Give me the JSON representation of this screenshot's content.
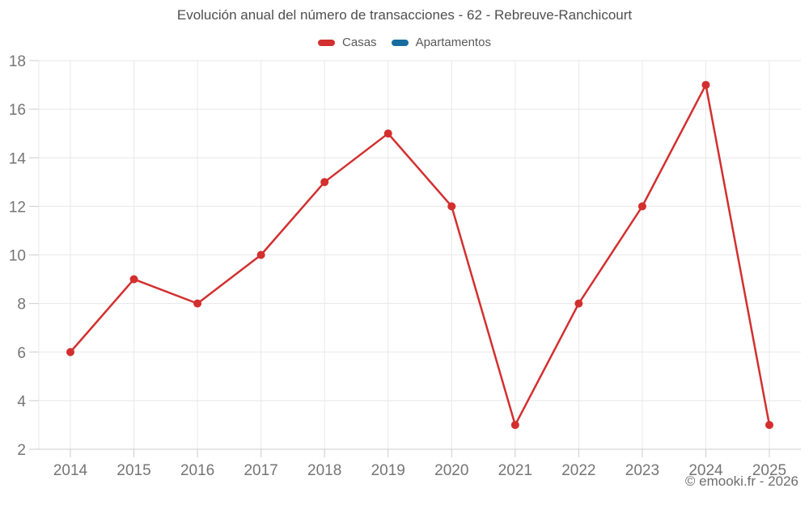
{
  "header": {
    "title": "Evolución anual del número de transacciones - 62 - Rebreuve-Ranchicourt"
  },
  "legend": [
    {
      "label": "Casas",
      "color": "#d32f2f"
    },
    {
      "label": "Apartamentos",
      "color": "#176e9e"
    }
  ],
  "footer": {
    "credit": "© emooki.fr - 2026"
  },
  "colors": {
    "grid": "#e8e8e8",
    "axis": "#cccccc",
    "tick": "#cccccc",
    "axis_label": "#757575",
    "title": "#4f4f4f",
    "casas": "#d32f2f",
    "apartamentos": "#176e9e"
  },
  "chart_data": {
    "type": "line",
    "title": "Evolución anual del número de transacciones - 62 - Rebreuve-Ranchicourt",
    "categories": [
      2014,
      2015,
      2016,
      2017,
      2018,
      2019,
      2020,
      2021,
      2022,
      2023,
      2024,
      2025
    ],
    "series": [
      {
        "name": "Casas",
        "color": "#d32f2f",
        "values": [
          6,
          9,
          8,
          10,
          13,
          15,
          12,
          3,
          8,
          12,
          17,
          3
        ]
      },
      {
        "name": "Apartamentos",
        "color": "#176e9e",
        "values": []
      }
    ],
    "xlabel": "",
    "ylabel": "",
    "ylim": [
      2,
      18
    ],
    "ytick_step": 2,
    "grid": true,
    "legend_position": "top",
    "marker": "circle"
  }
}
